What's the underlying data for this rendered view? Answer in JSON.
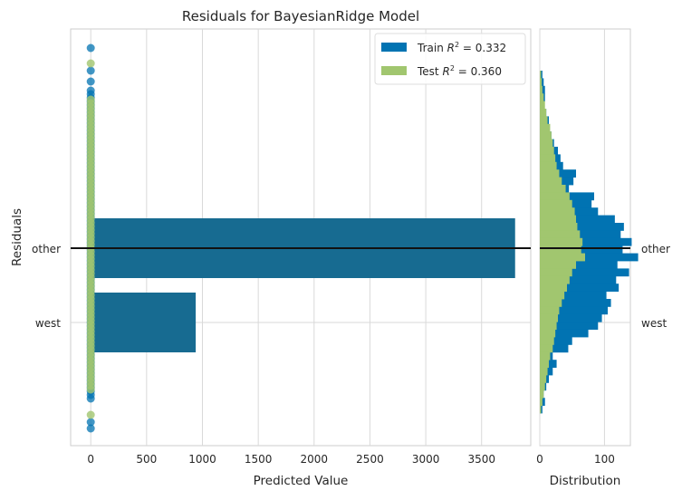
{
  "chart_data": {
    "type": "scatter",
    "title": "Residuals for BayesianRidge Model",
    "xlabel": "Predicted Value",
    "ylabel": "Residuals",
    "xlim": [
      -180,
      3940
    ],
    "xticks": [
      0,
      500,
      1000,
      1500,
      2000,
      2500,
      3000,
      3500
    ],
    "ytick_labels": [
      "other",
      "west"
    ],
    "zero_line_at": "other",
    "grid": true,
    "legend": {
      "placement": "top-right",
      "entries": [
        {
          "name": "Train",
          "r2": "0.332",
          "color": "#0173b2"
        },
        {
          "name": "Test",
          "r2": "0.360",
          "color": "#a1c66f"
        }
      ]
    },
    "bars": [
      {
        "category": "other",
        "value": 3800,
        "color": "#176b91"
      },
      {
        "category": "west",
        "value": 940,
        "color": "#176b91"
      }
    ],
    "scatter_x": 0,
    "train_outlier_count": 4,
    "test_outlier_count": 2,
    "histogram": {
      "xlabel": "Distribution",
      "xticks": [
        0,
        100
      ],
      "xlim": [
        0,
        140
      ],
      "train_counts": [
        4,
        6,
        8,
        8,
        6,
        10,
        14,
        12,
        18,
        22,
        28,
        32,
        36,
        56,
        52,
        45,
        84,
        80,
        90,
        116,
        130,
        125,
        142,
        128,
        152,
        120,
        138,
        118,
        122,
        103,
        110,
        105,
        96,
        90,
        75,
        50,
        44,
        20,
        26,
        20,
        14,
        10,
        6,
        8,
        4
      ],
      "test_counts": [
        2,
        3,
        4,
        6,
        8,
        10,
        12,
        16,
        18,
        20,
        22,
        24,
        26,
        30,
        34,
        40,
        46,
        50,
        54,
        56,
        58,
        62,
        66,
        64,
        70,
        56,
        50,
        46,
        42,
        38,
        34,
        30,
        28,
        26,
        24,
        22,
        20,
        16,
        14,
        12,
        10,
        8,
        6,
        4,
        2
      ]
    }
  }
}
